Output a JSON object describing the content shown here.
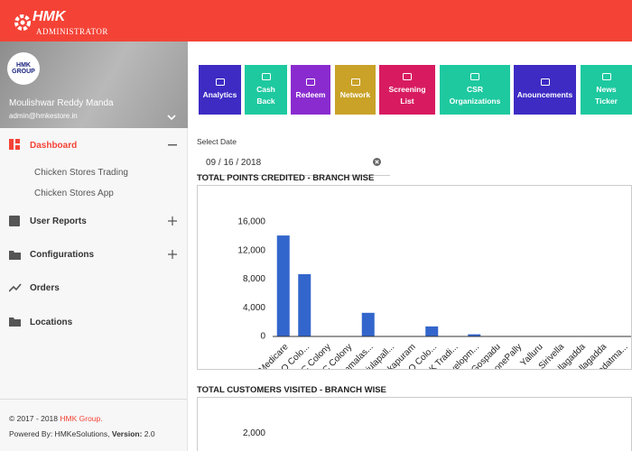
{
  "header": {
    "brand": "HMK",
    "subtitle": "ADMINISTRATOR"
  },
  "sidebar": {
    "logo": "HMK GROUP",
    "name": "Moulishwar Reddy Manda",
    "email": "admin@hmkestore.in",
    "menu": [
      "Dashboard",
      "User Reports",
      "Configurations",
      "Orders",
      "Locations"
    ],
    "submenu": [
      "Chicken Stores Trading",
      "Chicken Stores App"
    ],
    "footer": {
      "copyright": "© 2017 - 2018",
      "company": "HMK Group.",
      "powered": "Powered By: HMKeSolutions,",
      "version_label": "Version:",
      "version": "2.0"
    }
  },
  "toolbar": [
    {
      "label": "Analytics",
      "color": "#3d2bc4"
    },
    {
      "label": "Cash Back",
      "color": "#1ec9a0"
    },
    {
      "label": "Redeem",
      "color": "#8a2bd0"
    },
    {
      "label": "Network",
      "color": "#c9a227"
    },
    {
      "label": "Screening List",
      "color": "#d81b60"
    },
    {
      "label": "CSR Organizations",
      "color": "#1ec9a0"
    },
    {
      "label": "Anouncements",
      "color": "#3d2bc4"
    },
    {
      "label": "News Ticker",
      "color": "#1ec9a0"
    }
  ],
  "date_filter": {
    "label": "Select Date",
    "value": "09 / 16 / 2018"
  },
  "chart_data": [
    {
      "type": "bar",
      "title": "TOTAL POINTS CREDITED - BRANCH WISE",
      "categories": [
        "Medicare",
        "NGO Colo...",
        "V C Colony",
        "V C Colony",
        "Bommalas...",
        "Gajulapall...",
        "Bukkapuram",
        "NGO Colo...",
        "HMK Tradi...",
        "Developm...",
        "Gospadu",
        "NoonePally",
        "Yalluru",
        "Sirivella",
        "Allagadda",
        "Allagadda",
        "Bandatma..."
      ],
      "values": [
        14100,
        8700,
        0,
        0,
        3300,
        0,
        0,
        1400,
        0,
        300,
        0,
        0,
        0,
        0,
        0,
        0,
        0
      ],
      "color": "#3366cc",
      "ylim": [
        0,
        16000
      ],
      "yticks": [
        0,
        {
          "value": 4000,
          "label": "4,000"
        },
        {
          "value": 8000,
          "label": "8,000"
        },
        {
          "value": 12000,
          "label": "12,000"
        },
        {
          "value": 16000,
          "label": "16,000"
        }
      ],
      "grid": false
    },
    {
      "type": "bar",
      "title": "TOTAL CUSTOMERS VISITED - BRANCH WISE",
      "ylim": [
        0,
        2400
      ],
      "yticks": [
        {
          "value": 2000,
          "label": "2,000"
        }
      ],
      "grid": false
    }
  ]
}
